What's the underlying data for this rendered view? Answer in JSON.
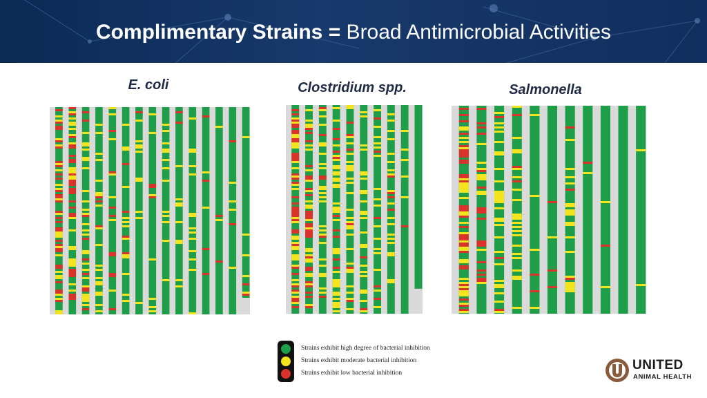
{
  "header": {
    "title_bold": "Complimentary Strains =",
    "title_rest": " Broad Antimicrobial Activities",
    "background": "#102f5e"
  },
  "panels": [
    {
      "title": "E. coli"
    },
    {
      "title": "Clostridium spp."
    },
    {
      "title": "Salmonella"
    }
  ],
  "legend": {
    "items": [
      {
        "label": "Strains exhibit high degree of bacterial inhibition",
        "color": "#1e9e48"
      },
      {
        "label": "Strains exhibit moderate bacterial inhibition",
        "color": "#f3e51d"
      },
      {
        "label": "Strains exhibit low bacterial inhibition",
        "color": "#d9332a"
      }
    ]
  },
  "logo": {
    "name": "UNITED",
    "subtitle": "ANIMAL HEALTH",
    "mark": "u-mark-icon",
    "color": "#8a5a3c"
  },
  "colors": {
    "high": "#1e9e48",
    "moderate": "#f3e51d",
    "low": "#d9332a",
    "label_column": "#dadada"
  }
}
